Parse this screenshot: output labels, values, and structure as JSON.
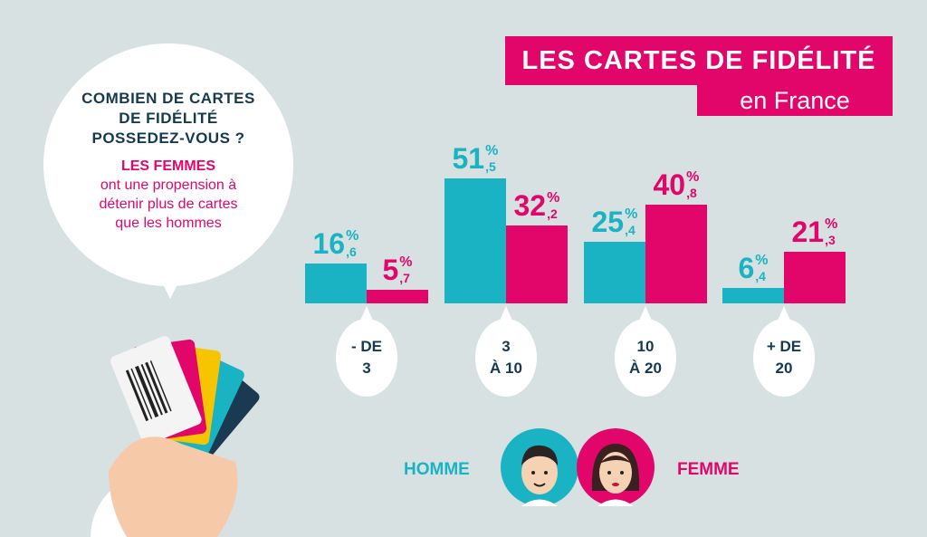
{
  "title": {
    "line1": "LES CARTES DE FIDÉLITÉ",
    "line2": "en France"
  },
  "bubble": {
    "question": "COMBIEN DE CARTES DE FIDÉLITÉ POSSEDEZ-VOUS ?",
    "answer_highlight": "LES FEMMES",
    "answer_text": "ont une propension à détenir plus de cartes que les hommes"
  },
  "colors": {
    "homme": "#19b3c3",
    "femme": "#e2066b",
    "background": "#d8e1e2",
    "text": "#143a52"
  },
  "chart_data": {
    "type": "bar",
    "categories": [
      "- DE\n3",
      "3\nÀ 10",
      "10\nÀ 20",
      "+ DE\n20"
    ],
    "series": [
      {
        "name": "HOMME",
        "values": [
          16.6,
          51.5,
          25.4,
          6.4
        ],
        "labels": [
          [
            "16",
            ",6"
          ],
          [
            "51",
            ",5"
          ],
          [
            "25",
            ",4"
          ],
          [
            "6",
            ",4"
          ]
        ]
      },
      {
        "name": "FEMME",
        "values": [
          5.7,
          32.2,
          40.8,
          21.3
        ],
        "labels": [
          [
            "5",
            ",7"
          ],
          [
            "32",
            ",2"
          ],
          [
            "40",
            ",8"
          ],
          [
            "21",
            ",3"
          ]
        ]
      }
    ],
    "unit": "%",
    "legend": "bottom"
  },
  "legend": {
    "homme": "HOMME",
    "femme": "FEMME"
  }
}
